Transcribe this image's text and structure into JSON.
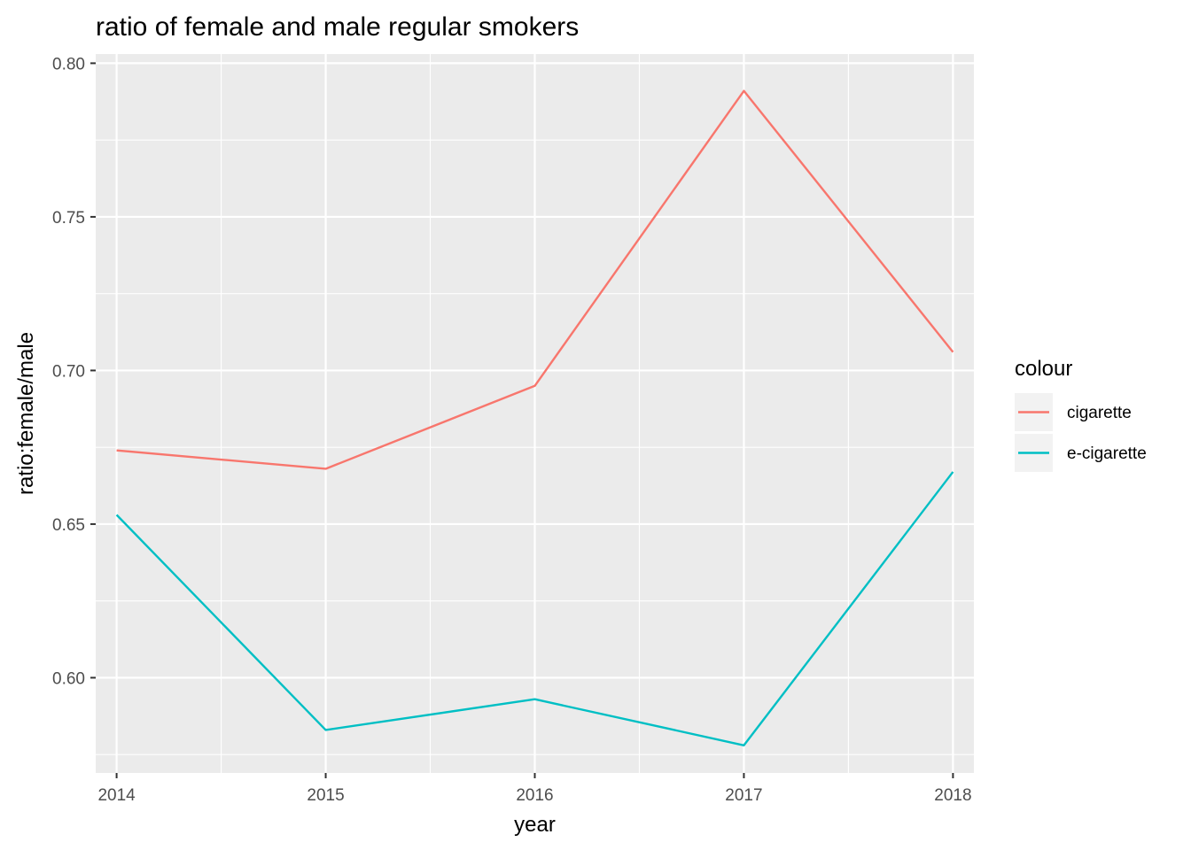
{
  "chart_data": {
    "type": "line",
    "title": "ratio of female and male regular smokers",
    "xlabel": "year",
    "ylabel": "ratio:female/male",
    "x": [
      2014,
      2015,
      2016,
      2017,
      2018
    ],
    "x_tick_labels": [
      "2014",
      "2015",
      "2016",
      "2017",
      "2018"
    ],
    "y_ticks": [
      0.6,
      0.65,
      0.7,
      0.75,
      0.8
    ],
    "y_tick_labels": [
      "0.60",
      "0.65",
      "0.70",
      "0.75",
      "0.80"
    ],
    "xlim": [
      2013.9,
      2018.1
    ],
    "ylim": [
      0.569,
      0.803
    ],
    "grid": true,
    "legend": {
      "title": "colour",
      "position": "right"
    },
    "series": [
      {
        "name": "cigarette",
        "color": "#F8766D",
        "values": [
          0.674,
          0.668,
          0.695,
          0.791,
          0.706
        ]
      },
      {
        "name": "e-cigarette",
        "color": "#00BFC4",
        "values": [
          0.653,
          0.583,
          0.593,
          0.578,
          0.667
        ]
      }
    ]
  }
}
